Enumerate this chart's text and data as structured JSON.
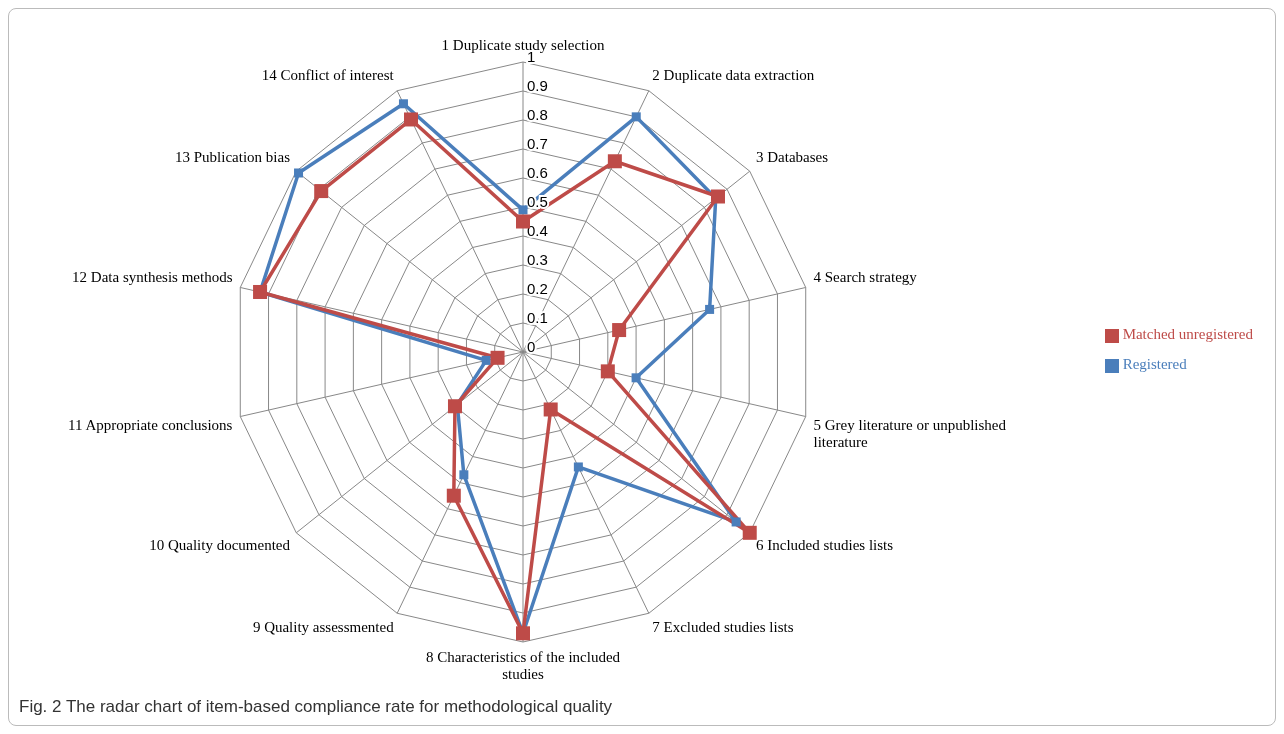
{
  "chart_data": {
    "type": "radar",
    "categories": [
      "1 Duplicate study selection",
      "2 Duplicate data extraction",
      "3 Databases",
      "4 Search strategy",
      "5 Grey literature or unpublished literature",
      "6 Included studies lists",
      "7 Excluded studies lists",
      "8 Characteristics of the included studies",
      "9 Quality assessmented",
      "10 Quality documented",
      "11 Appropriate conclusions",
      "12 Data synthesis methods",
      "13 Publication bias",
      "14 Conflict of interest"
    ],
    "series": [
      {
        "name": "Registered",
        "color": "#4a7ebb",
        "values": [
          0.49,
          0.9,
          0.85,
          0.66,
          0.4,
          0.94,
          0.44,
          0.97,
          0.47,
          0.29,
          0.13,
          0.93,
          0.99,
          0.95
        ]
      },
      {
        "name": "Matched unregistered",
        "color": "#be4b48",
        "values": [
          0.45,
          0.73,
          0.86,
          0.34,
          0.3,
          1.0,
          0.22,
          0.97,
          0.55,
          0.3,
          0.09,
          0.93,
          0.89,
          0.89
        ]
      }
    ],
    "ylim": [
      0,
      1
    ],
    "yticks": [
      0,
      0.1,
      0.2,
      0.3,
      0.4,
      0.5,
      0.6,
      0.7,
      0.8,
      0.9,
      1
    ],
    "grid": true,
    "legend": "right",
    "marker": "square",
    "annotations": [
      "Fig. 2 The radar chart of item-based compliance rate for methodological quality"
    ]
  }
}
